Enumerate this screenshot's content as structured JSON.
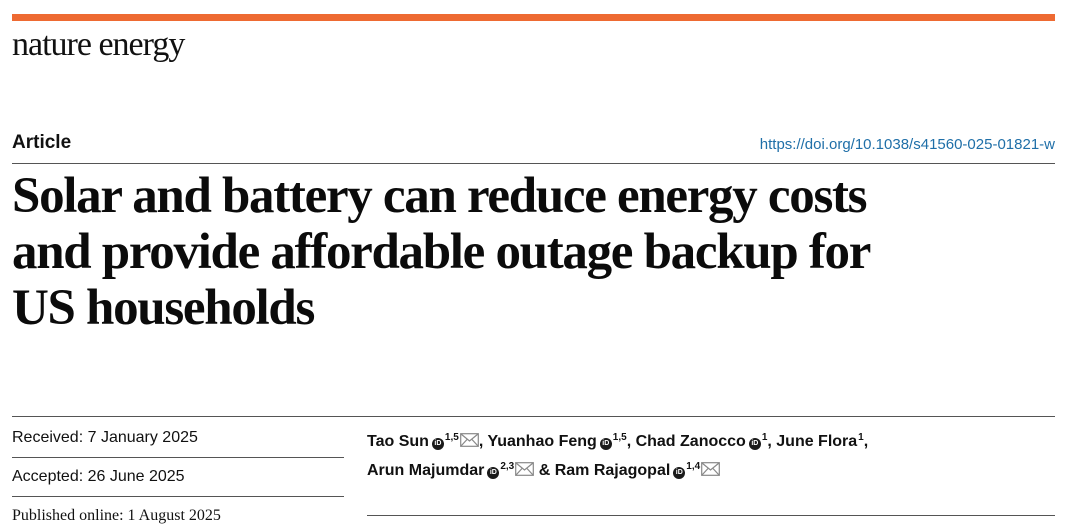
{
  "journal": {
    "name": "nature energy"
  },
  "article": {
    "type_label": "Article",
    "doi": "https://doi.org/10.1038/s41560-025-01821-w",
    "title_lines": [
      "Solar and battery can reduce energy costs",
      "and provide affordable outage backup for",
      "US households"
    ]
  },
  "dates": {
    "received": "Received: 7 January 2025",
    "accepted": "Accepted: 26 June 2025",
    "published": "Published online: 1 August 2025"
  },
  "authors": [
    {
      "name": "Tao Sun",
      "affiliations": "1,5",
      "orcid": true,
      "corresponding": true
    },
    {
      "name": "Yuanhao Feng",
      "affiliations": "1,5",
      "orcid": true,
      "corresponding": false
    },
    {
      "name": "Chad Zanocco",
      "affiliations": "1",
      "orcid": true,
      "corresponding": false
    },
    {
      "name": "June Flora",
      "affiliations": "1",
      "orcid": false,
      "corresponding": false
    },
    {
      "name": "Arun Majumdar",
      "affiliations": "2,3",
      "orcid": true,
      "corresponding": true
    },
    {
      "name": "Ram Rajagopal",
      "affiliations": "1,4",
      "orcid": true,
      "corresponding": true
    }
  ],
  "colors": {
    "accent_bar": "#ee6a32",
    "link": "#1f6fa8"
  }
}
